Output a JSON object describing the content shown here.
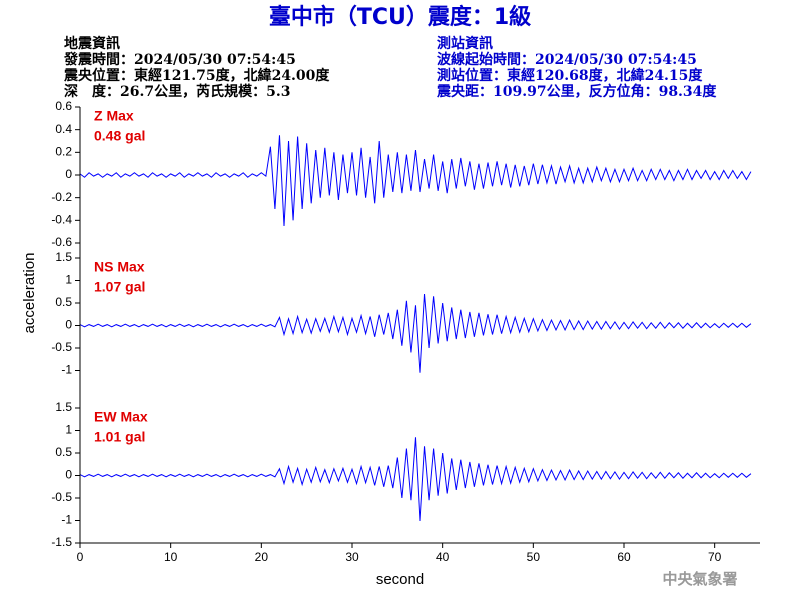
{
  "chart_data": {
    "type": "line",
    "title": "臺中市（TCU）震度：1級",
    "earthquake_info": [
      "地震資訊",
      "發震時間：2024/05/30 07:54:45",
      "震央位置：東經121.75度，北緯24.00度",
      "深　度：26.7公里，芮氏規模：5.3"
    ],
    "station_info": [
      "測站資訊",
      "波線起始時間：2024/05/30 07:54:45",
      "測站位置：東經120.68度，北緯24.15度",
      "震央距：109.97公里，反方位角：98.34度"
    ],
    "x_label": "second",
    "y_label": "acceleration",
    "source": "中央氣象署",
    "xlim": [
      0,
      75
    ],
    "xticks": [
      0,
      10,
      20,
      30,
      40,
      50,
      60,
      70
    ],
    "x": [
      0,
      0.5,
      1,
      1.5,
      2,
      2.5,
      3,
      3.5,
      4,
      4.5,
      5,
      5.5,
      6,
      6.5,
      7,
      7.5,
      8,
      8.5,
      9,
      9.5,
      10,
      10.5,
      11,
      11.5,
      12,
      12.5,
      13,
      13.5,
      14,
      14.5,
      15,
      15.5,
      16,
      16.5,
      17,
      17.5,
      18,
      18.5,
      19,
      19.5,
      20,
      20.5,
      21,
      21.5,
      22,
      22.5,
      23,
      23.5,
      24,
      24.5,
      25,
      25.5,
      26,
      26.5,
      27,
      27.5,
      28,
      28.5,
      29,
      29.5,
      30,
      30.5,
      31,
      31.5,
      32,
      32.5,
      33,
      33.5,
      34,
      34.5,
      35,
      35.5,
      36,
      36.5,
      37,
      37.5,
      38,
      38.5,
      39,
      39.5,
      40,
      40.5,
      41,
      41.5,
      42,
      42.5,
      43,
      43.5,
      44,
      44.5,
      45,
      45.5,
      46,
      46.5,
      47,
      47.5,
      48,
      48.5,
      49,
      49.5,
      50,
      50.5,
      51,
      51.5,
      52,
      52.5,
      53,
      53.5,
      54,
      54.5,
      55,
      55.5,
      56,
      56.5,
      57,
      57.5,
      58,
      58.5,
      59,
      59.5,
      60,
      60.5,
      61,
      61.5,
      62,
      62.5,
      63,
      63.5,
      64,
      64.5,
      65,
      65.5,
      66,
      66.5,
      67,
      67.5,
      68,
      68.5,
      69,
      69.5,
      70,
      70.5,
      71,
      71.5,
      72,
      72.5,
      73,
      73.5,
      74
    ],
    "panels": [
      {
        "name": "Z Max",
        "max_label": "0.48 gal",
        "color": "#0000ff",
        "ylim": [
          -0.6,
          0.6
        ],
        "yticks": [
          0.6,
          0.4,
          0.2,
          0,
          -0.2,
          -0.4,
          -0.6
        ],
        "values": [
          0.01,
          -0.02,
          0.02,
          -0.01,
          0.01,
          -0.02,
          0.01,
          -0.01,
          0.02,
          -0.02,
          0.01,
          -0.01,
          0.02,
          -0.01,
          0.01,
          -0.02,
          0.02,
          -0.01,
          0.01,
          -0.02,
          0.01,
          -0.01,
          0.02,
          -0.02,
          0.01,
          -0.01,
          0.02,
          -0.01,
          0.01,
          -0.02,
          0.02,
          -0.01,
          0.01,
          -0.02,
          0.01,
          -0.01,
          0.02,
          -0.02,
          0.01,
          -0.01,
          0.02,
          -0.01,
          0.25,
          -0.3,
          0.35,
          -0.45,
          0.3,
          -0.4,
          0.34,
          -0.3,
          0.28,
          -0.25,
          0.22,
          -0.2,
          0.24,
          -0.18,
          0.2,
          -0.22,
          0.18,
          -0.16,
          0.2,
          -0.18,
          0.24,
          -0.2,
          0.16,
          -0.25,
          0.3,
          -0.2,
          0.18,
          -0.15,
          0.2,
          -0.16,
          0.18,
          -0.14,
          0.22,
          -0.15,
          0.14,
          -0.12,
          0.18,
          -0.14,
          0.12,
          -0.16,
          0.14,
          -0.12,
          0.15,
          -0.1,
          0.12,
          -0.13,
          0.1,
          -0.12,
          0.11,
          -0.1,
          0.12,
          -0.09,
          0.1,
          -0.11,
          0.09,
          -0.1,
          0.08,
          -0.09,
          0.1,
          -0.08,
          0.09,
          -0.07,
          0.08,
          -0.08,
          0.07,
          -0.06,
          0.08,
          -0.07,
          0.06,
          -0.07,
          0.06,
          -0.06,
          0.07,
          -0.05,
          0.06,
          -0.06,
          0.05,
          -0.06,
          0.05,
          -0.05,
          0.06,
          -0.05,
          0.04,
          -0.05,
          0.05,
          -0.04,
          0.05,
          -0.04,
          0.04,
          -0.05,
          0.04,
          -0.04,
          0.05,
          -0.04,
          0.04,
          -0.03,
          0.04,
          -0.04,
          0.03,
          -0.04,
          0.04,
          -0.03,
          0.04,
          -0.03,
          0.03,
          -0.04,
          0.03
        ]
      },
      {
        "name": "NS Max",
        "max_label": "1.07 gal",
        "color": "#0000ff",
        "ylim": [
          -1.5,
          1.5
        ],
        "yticks": [
          1.5,
          1,
          0.5,
          0,
          -0.5,
          -1
        ],
        "values": [
          0.02,
          -0.03,
          0.02,
          -0.02,
          0.03,
          -0.02,
          0.02,
          -0.03,
          0.02,
          -0.02,
          0.03,
          -0.02,
          0.02,
          -0.03,
          0.02,
          -0.02,
          0.03,
          -0.02,
          0.02,
          -0.03,
          0.02,
          -0.02,
          0.03,
          -0.02,
          0.02,
          -0.03,
          0.02,
          -0.02,
          0.03,
          -0.02,
          0.02,
          -0.03,
          0.02,
          -0.02,
          0.03,
          -0.02,
          0.02,
          -0.03,
          0.02,
          -0.02,
          0.03,
          -0.02,
          0.02,
          -0.03,
          0.18,
          -0.2,
          0.15,
          -0.18,
          0.2,
          -0.16,
          0.14,
          -0.17,
          0.15,
          -0.13,
          0.16,
          -0.15,
          0.2,
          -0.14,
          0.18,
          -0.2,
          0.16,
          -0.15,
          0.22,
          -0.18,
          0.2,
          -0.25,
          0.24,
          -0.2,
          0.28,
          -0.3,
          0.35,
          -0.45,
          0.55,
          -0.6,
          0.45,
          -1.05,
          0.7,
          -0.5,
          0.65,
          -0.4,
          0.5,
          -0.35,
          0.4,
          -0.3,
          0.35,
          -0.28,
          0.3,
          -0.25,
          0.28,
          -0.22,
          0.25,
          -0.2,
          0.24,
          -0.18,
          0.2,
          -0.16,
          0.18,
          -0.15,
          0.16,
          -0.14,
          0.15,
          -0.12,
          0.13,
          -0.11,
          0.12,
          -0.1,
          0.11,
          -0.1,
          0.12,
          -0.09,
          0.1,
          -0.09,
          0.1,
          -0.08,
          0.09,
          -0.08,
          0.09,
          -0.07,
          0.08,
          -0.08,
          0.07,
          -0.07,
          0.08,
          -0.06,
          0.07,
          -0.07,
          0.06,
          -0.06,
          0.07,
          -0.06,
          0.06,
          -0.05,
          0.06,
          -0.06,
          0.05,
          -0.05,
          0.06,
          -0.05,
          0.05,
          -0.05,
          0.04,
          -0.05,
          0.05,
          -0.04,
          0.05,
          -0.04,
          0.05,
          -0.04,
          0.04
        ]
      },
      {
        "name": "EW Max",
        "max_label": "1.01 gal",
        "color": "#0000ff",
        "ylim": [
          -1.5,
          1.5
        ],
        "yticks": [
          1.5,
          1,
          0.5,
          0,
          -0.5,
          -1,
          -1.5
        ],
        "values": [
          0.02,
          -0.03,
          0.02,
          -0.02,
          0.03,
          -0.02,
          0.02,
          -0.03,
          0.02,
          -0.02,
          0.03,
          -0.02,
          0.02,
          -0.03,
          0.02,
          -0.02,
          0.03,
          -0.02,
          0.02,
          -0.03,
          0.02,
          -0.02,
          0.03,
          -0.02,
          0.02,
          -0.03,
          0.02,
          -0.02,
          0.03,
          -0.02,
          0.02,
          -0.03,
          0.02,
          -0.02,
          0.03,
          -0.02,
          0.02,
          -0.03,
          0.02,
          -0.02,
          0.03,
          -0.02,
          0.02,
          -0.03,
          0.15,
          -0.18,
          0.2,
          -0.15,
          0.16,
          -0.2,
          0.14,
          -0.15,
          0.18,
          -0.14,
          0.13,
          -0.16,
          0.15,
          -0.12,
          0.16,
          -0.15,
          0.14,
          -0.18,
          0.2,
          -0.16,
          0.18,
          -0.22,
          0.2,
          -0.25,
          0.22,
          -0.28,
          0.4,
          -0.5,
          0.6,
          -0.55,
          0.85,
          -1.01,
          0.65,
          -0.55,
          0.6,
          -0.45,
          0.5,
          -0.4,
          0.38,
          -0.32,
          0.35,
          -0.28,
          0.3,
          -0.25,
          0.27,
          -0.22,
          0.24,
          -0.2,
          0.22,
          -0.18,
          0.2,
          -0.17,
          0.18,
          -0.15,
          0.16,
          -0.14,
          0.15,
          -0.12,
          0.13,
          -0.11,
          0.12,
          -0.1,
          0.11,
          -0.1,
          0.12,
          -0.09,
          0.1,
          -0.09,
          0.1,
          -0.08,
          0.09,
          -0.08,
          0.09,
          -0.07,
          0.08,
          -0.08,
          0.07,
          -0.07,
          0.08,
          -0.06,
          0.07,
          -0.07,
          0.06,
          -0.06,
          0.07,
          -0.06,
          0.06,
          -0.05,
          0.06,
          -0.06,
          0.05,
          -0.05,
          0.06,
          -0.05,
          0.05,
          -0.05,
          0.04,
          -0.05,
          0.05,
          -0.04,
          0.05,
          -0.04,
          0.05,
          -0.04,
          0.04
        ]
      }
    ]
  }
}
